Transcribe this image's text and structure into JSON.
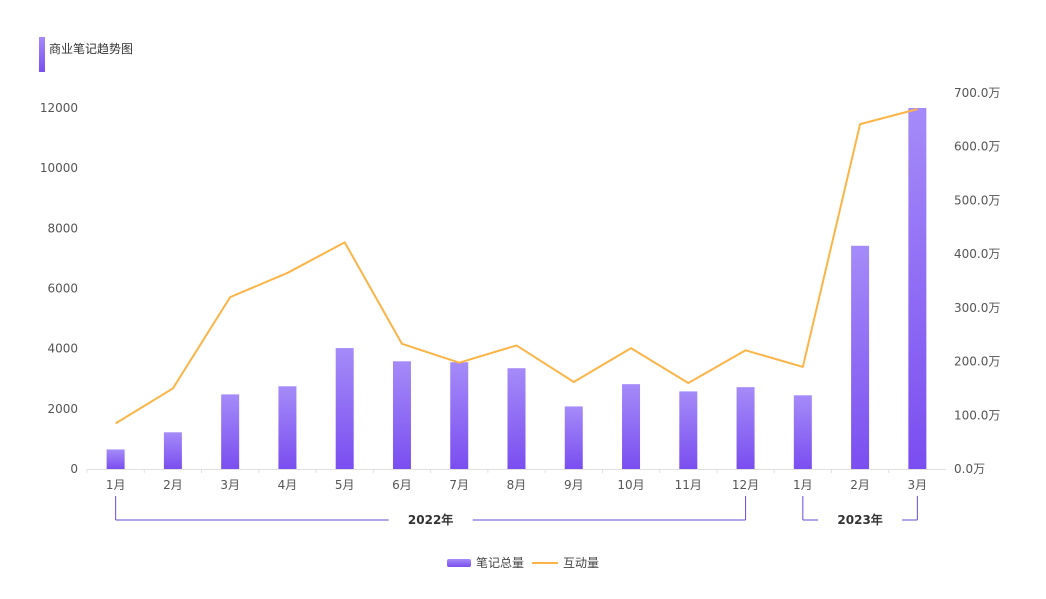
{
  "title": "商业笔记趋势图",
  "colors": {
    "bar_top": "#a58bf8",
    "bar_bottom": "#7a4ef0",
    "line": "#fbb447",
    "axis": "#e0e0e0",
    "bracket": "#6a4bd6"
  },
  "chart_data": {
    "type": "bar+line",
    "categories": [
      "1月",
      "2月",
      "3月",
      "4月",
      "5月",
      "6月",
      "7月",
      "8月",
      "9月",
      "10月",
      "11月",
      "12月",
      "1月",
      "2月",
      "3月"
    ],
    "groups": [
      {
        "label": "2022年",
        "from": 0,
        "to": 11
      },
      {
        "label": "2023年",
        "from": 12,
        "to": 14
      }
    ],
    "series": [
      {
        "name": "笔记总量",
        "type": "bar",
        "axis": "left",
        "values": [
          650,
          1220,
          2480,
          2750,
          4020,
          3580,
          3550,
          3350,
          2080,
          2820,
          2580,
          2720,
          2450,
          7420,
          12000
        ]
      },
      {
        "name": "互动量",
        "type": "line",
        "axis": "right",
        "values": [
          85,
          150,
          320,
          365,
          422,
          233,
          198,
          230,
          162,
          225,
          160,
          221,
          190,
          642,
          670
        ]
      }
    ],
    "y_left": {
      "ticks": [
        "0",
        "2000",
        "4000",
        "6000",
        "8000",
        "10000",
        "12000"
      ],
      "range": [
        0,
        12000
      ]
    },
    "y_right": {
      "ticks": [
        "0.0万",
        "100.0万",
        "200.0万",
        "300.0万",
        "400.0万",
        "500.0万",
        "600.0万",
        "700.0万"
      ],
      "range": [
        0,
        700
      ],
      "unit": "万"
    },
    "legend_position": "bottom-center"
  }
}
